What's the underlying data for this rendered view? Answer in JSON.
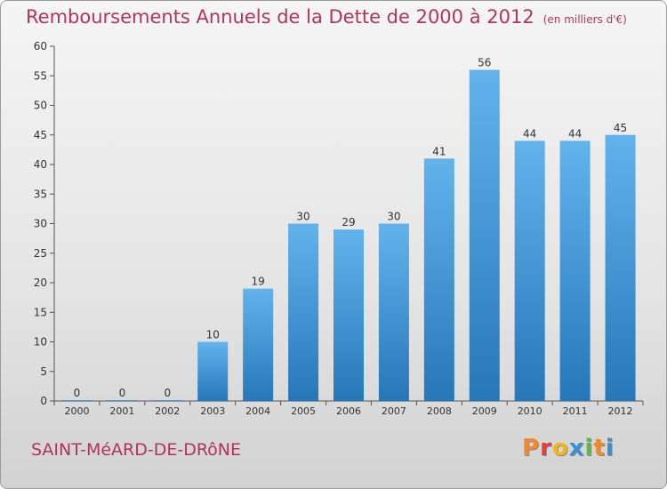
{
  "title": "Remboursements Annuels de la Dette de 2000 à 2012",
  "subtitle": "(en milliers d'€)",
  "commune": "SAINT-MéARD-DE-DRôNE",
  "logo": "Proxiti",
  "colors": {
    "title": "#b5325e",
    "bar_top": "#62b3ec",
    "bar_bottom": "#2677b9",
    "logo": [
      "#f08a2c",
      "#e23c3c",
      "#f2b51f",
      "#3a8fd6",
      "#5bb84a",
      "#f08a2c",
      "#3a8fd6"
    ]
  },
  "chart_data": {
    "type": "bar",
    "categories": [
      "2000",
      "2001",
      "2002",
      "2003",
      "2004",
      "2005",
      "2006",
      "2007",
      "2008",
      "2009",
      "2010",
      "2011",
      "2012"
    ],
    "values": [
      0,
      0,
      0,
      10,
      19,
      30,
      29,
      30,
      41,
      56,
      44,
      44,
      45
    ],
    "data_labels": [
      "0",
      "0",
      "0",
      "10",
      "19",
      "30",
      "29",
      "30",
      "41",
      "56",
      "44",
      "44",
      "45"
    ],
    "ylim": [
      0,
      60
    ],
    "yticks": [
      0,
      5,
      10,
      15,
      20,
      25,
      30,
      35,
      40,
      45,
      50,
      55,
      60
    ],
    "grid": false,
    "xlabel": "",
    "ylabel": ""
  }
}
